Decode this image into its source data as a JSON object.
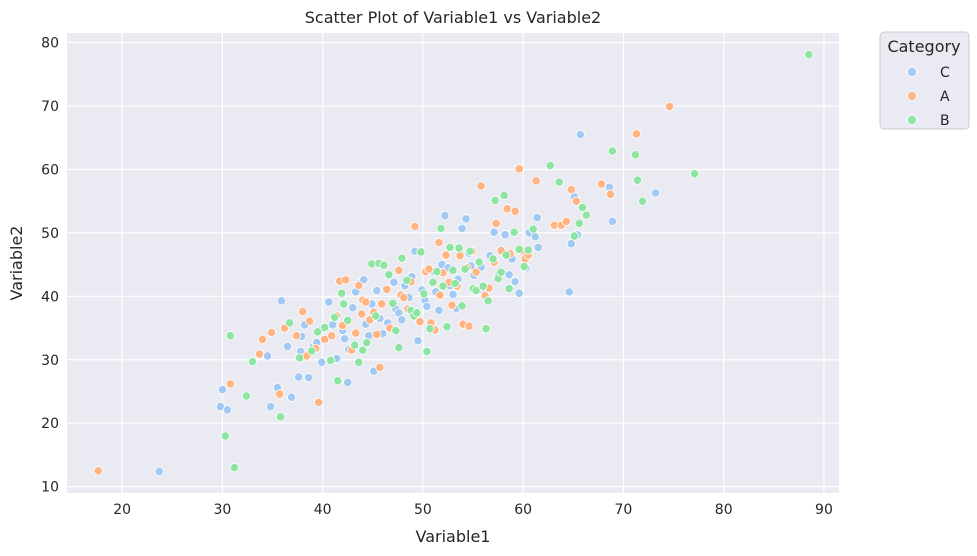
{
  "chart_data": {
    "type": "scatter",
    "title": "Scatter Plot of Variable1 vs Variable2",
    "xlabel": "Variable1",
    "ylabel": "Variable2",
    "xlim": [
      14.5,
      91.5
    ],
    "ylim": [
      9,
      81.5
    ],
    "xticks": [
      20,
      30,
      40,
      50,
      60,
      70,
      80,
      90
    ],
    "yticks": [
      10,
      20,
      30,
      40,
      50,
      60,
      70,
      80
    ],
    "grid": true,
    "legend": {
      "title": "Category",
      "placement": "outside-top-right"
    },
    "series": [
      {
        "name": "C",
        "color": "#a1c9f4",
        "points": [
          [
            23.7,
            12.4
          ],
          [
            30.0,
            25.3
          ],
          [
            29.8,
            22.6
          ],
          [
            30.5,
            22.1
          ],
          [
            34.5,
            30.6
          ],
          [
            34.8,
            22.6
          ],
          [
            35.5,
            25.6
          ],
          [
            35.9,
            39.3
          ],
          [
            36.5,
            32.1
          ],
          [
            36.9,
            24.1
          ],
          [
            37.6,
            27.3
          ],
          [
            37.8,
            31.3
          ],
          [
            37.9,
            33.7
          ],
          [
            38.2,
            35.5
          ],
          [
            38.6,
            27.2
          ],
          [
            39.0,
            31.9
          ],
          [
            39.4,
            32.7
          ],
          [
            39.9,
            29.6
          ],
          [
            40.0,
            35.0
          ],
          [
            40.6,
            39.1
          ],
          [
            41.0,
            35.5
          ],
          [
            41.4,
            30.2
          ],
          [
            42.0,
            34.6
          ],
          [
            42.2,
            33.3
          ],
          [
            42.5,
            26.4
          ],
          [
            42.6,
            31.6
          ],
          [
            43.0,
            38.2
          ],
          [
            43.3,
            40.7
          ],
          [
            43.7,
            42.0
          ],
          [
            44.1,
            42.6
          ],
          [
            44.3,
            35.6
          ],
          [
            44.6,
            33.8
          ],
          [
            44.9,
            38.8
          ],
          [
            45.1,
            28.2
          ],
          [
            45.4,
            40.9
          ],
          [
            45.7,
            36.5
          ],
          [
            46.0,
            34.1
          ],
          [
            46.5,
            35.8
          ],
          [
            47.1,
            42.2
          ],
          [
            47.3,
            38.0
          ],
          [
            47.6,
            37.4
          ],
          [
            47.9,
            36.3
          ],
          [
            48.2,
            41.7
          ],
          [
            48.6,
            39.8
          ],
          [
            48.9,
            43.1
          ],
          [
            49.2,
            47.1
          ],
          [
            49.5,
            33.0
          ],
          [
            49.9,
            41.0
          ],
          [
            50.2,
            39.4
          ],
          [
            50.4,
            38.4
          ],
          [
            50.8,
            35.6
          ],
          [
            51.1,
            43.9
          ],
          [
            51.3,
            40.7
          ],
          [
            51.6,
            37.8
          ],
          [
            51.9,
            45.0
          ],
          [
            52.2,
            52.7
          ],
          [
            52.5,
            44.5
          ],
          [
            52.7,
            41.7
          ],
          [
            53.0,
            40.3
          ],
          [
            53.3,
            38.1
          ],
          [
            53.5,
            42.7
          ],
          [
            53.9,
            50.7
          ],
          [
            54.3,
            52.2
          ],
          [
            54.6,
            46.8
          ],
          [
            54.8,
            44.8
          ],
          [
            55.1,
            43.3
          ],
          [
            55.5,
            40.9
          ],
          [
            55.8,
            44.6
          ],
          [
            56.1,
            41.3
          ],
          [
            56.7,
            46.4
          ],
          [
            57.1,
            50.1
          ],
          [
            57.6,
            43.5
          ],
          [
            58.0,
            47.0
          ],
          [
            58.2,
            49.7
          ],
          [
            58.6,
            43.4
          ],
          [
            58.9,
            45.9
          ],
          [
            59.2,
            42.3
          ],
          [
            59.6,
            40.5
          ],
          [
            60.3,
            44.5
          ],
          [
            60.6,
            50.0
          ],
          [
            61.2,
            49.4
          ],
          [
            61.4,
            52.4
          ],
          [
            61.5,
            47.7
          ],
          [
            64.6,
            40.7
          ],
          [
            64.8,
            48.3
          ],
          [
            65.1,
            55.7
          ],
          [
            65.4,
            49.7
          ],
          [
            65.7,
            65.5
          ],
          [
            68.6,
            57.2
          ],
          [
            68.9,
            51.8
          ],
          [
            73.2,
            56.3
          ]
        ]
      },
      {
        "name": "A",
        "color": "#ffb482",
        "points": [
          [
            17.6,
            12.5
          ],
          [
            30.8,
            26.2
          ],
          [
            33.7,
            30.9
          ],
          [
            34.0,
            33.2
          ],
          [
            34.9,
            34.3
          ],
          [
            35.7,
            24.6
          ],
          [
            36.2,
            35.0
          ],
          [
            37.4,
            33.8
          ],
          [
            38.0,
            37.6
          ],
          [
            38.4,
            30.6
          ],
          [
            38.7,
            36.1
          ],
          [
            39.3,
            31.8
          ],
          [
            39.6,
            23.3
          ],
          [
            40.2,
            33.2
          ],
          [
            40.9,
            33.8
          ],
          [
            41.4,
            36.9
          ],
          [
            41.7,
            42.4
          ],
          [
            42.0,
            35.4
          ],
          [
            42.3,
            42.6
          ],
          [
            42.9,
            31.5
          ],
          [
            43.3,
            34.2
          ],
          [
            43.6,
            41.7
          ],
          [
            43.9,
            37.2
          ],
          [
            44.0,
            39.4
          ],
          [
            44.3,
            39.1
          ],
          [
            44.7,
            36.3
          ],
          [
            45.1,
            37.5
          ],
          [
            45.4,
            34.0
          ],
          [
            45.7,
            28.8
          ],
          [
            45.9,
            38.8
          ],
          [
            46.4,
            41.1
          ],
          [
            46.7,
            35.0
          ],
          [
            47.3,
            34.6
          ],
          [
            47.6,
            44.1
          ],
          [
            47.8,
            40.2
          ],
          [
            48.1,
            39.8
          ],
          [
            48.5,
            38.0
          ],
          [
            48.8,
            42.3
          ],
          [
            49.2,
            51.0
          ],
          [
            49.7,
            36.0
          ],
          [
            50.3,
            43.9
          ],
          [
            50.6,
            44.3
          ],
          [
            50.8,
            35.8
          ],
          [
            51.2,
            34.7
          ],
          [
            51.6,
            48.5
          ],
          [
            51.7,
            40.2
          ],
          [
            52.0,
            43.7
          ],
          [
            52.3,
            46.5
          ],
          [
            52.6,
            42.2
          ],
          [
            52.9,
            38.6
          ],
          [
            53.4,
            41.6
          ],
          [
            53.7,
            46.4
          ],
          [
            54.0,
            35.6
          ],
          [
            54.4,
            44.5
          ],
          [
            54.6,
            35.3
          ],
          [
            54.9,
            47.1
          ],
          [
            55.3,
            43.8
          ],
          [
            55.8,
            57.4
          ],
          [
            56.2,
            40.1
          ],
          [
            56.6,
            41.3
          ],
          [
            57.1,
            45.4
          ],
          [
            57.3,
            51.5
          ],
          [
            57.8,
            47.2
          ],
          [
            58.4,
            53.8
          ],
          [
            58.7,
            46.7
          ],
          [
            59.2,
            53.4
          ],
          [
            59.6,
            60.1
          ],
          [
            59.9,
            47.2
          ],
          [
            60.2,
            45.9
          ],
          [
            60.5,
            46.5
          ],
          [
            61.3,
            58.2
          ],
          [
            63.1,
            51.2
          ],
          [
            63.8,
            51.2
          ],
          [
            64.3,
            51.8
          ],
          [
            64.8,
            56.8
          ],
          [
            65.3,
            55.0
          ],
          [
            67.8,
            57.7
          ],
          [
            68.7,
            56.1
          ],
          [
            71.3,
            65.6
          ],
          [
            74.6,
            69.9
          ]
        ]
      },
      {
        "name": "B",
        "color": "#8de5a1",
        "points": [
          [
            30.3,
            18.0
          ],
          [
            30.8,
            33.8
          ],
          [
            31.2,
            13.0
          ],
          [
            32.4,
            24.3
          ],
          [
            33.0,
            29.7
          ],
          [
            35.8,
            21.0
          ],
          [
            36.7,
            35.8
          ],
          [
            37.7,
            30.3
          ],
          [
            38.9,
            31.4
          ],
          [
            39.5,
            34.4
          ],
          [
            40.2,
            35.1
          ],
          [
            40.8,
            29.9
          ],
          [
            41.2,
            36.7
          ],
          [
            41.5,
            26.7
          ],
          [
            41.9,
            40.5
          ],
          [
            42.1,
            38.8
          ],
          [
            42.5,
            36.2
          ],
          [
            43.2,
            32.3
          ],
          [
            43.6,
            29.6
          ],
          [
            44.0,
            31.5
          ],
          [
            44.4,
            32.7
          ],
          [
            44.9,
            45.1
          ],
          [
            45.3,
            36.9
          ],
          [
            45.6,
            45.2
          ],
          [
            46.1,
            44.9
          ],
          [
            46.6,
            43.4
          ],
          [
            47.0,
            38.9
          ],
          [
            47.3,
            34.6
          ],
          [
            47.6,
            31.9
          ],
          [
            47.9,
            46.0
          ],
          [
            48.4,
            42.5
          ],
          [
            48.8,
            37.8
          ],
          [
            49.1,
            36.9
          ],
          [
            49.4,
            37.4
          ],
          [
            49.8,
            47.0
          ],
          [
            50.1,
            40.4
          ],
          [
            50.4,
            31.3
          ],
          [
            50.7,
            34.9
          ],
          [
            51.0,
            42.2
          ],
          [
            51.4,
            43.9
          ],
          [
            51.8,
            50.7
          ],
          [
            52.0,
            41.6
          ],
          [
            52.4,
            35.2
          ],
          [
            52.7,
            47.7
          ],
          [
            53.0,
            44.1
          ],
          [
            53.2,
            42.0
          ],
          [
            53.6,
            47.6
          ],
          [
            53.9,
            38.5
          ],
          [
            54.2,
            44.3
          ],
          [
            54.7,
            47.1
          ],
          [
            55.0,
            41.2
          ],
          [
            55.3,
            40.9
          ],
          [
            55.6,
            45.4
          ],
          [
            56.0,
            41.6
          ],
          [
            56.3,
            34.9
          ],
          [
            56.5,
            39.3
          ],
          [
            57.0,
            45.9
          ],
          [
            57.2,
            55.1
          ],
          [
            57.5,
            42.8
          ],
          [
            57.8,
            43.8
          ],
          [
            58.1,
            55.9
          ],
          [
            58.3,
            46.5
          ],
          [
            58.6,
            41.2
          ],
          [
            59.1,
            50.1
          ],
          [
            59.6,
            47.4
          ],
          [
            60.1,
            44.7
          ],
          [
            60.5,
            47.3
          ],
          [
            61.0,
            50.6
          ],
          [
            62.7,
            60.6
          ],
          [
            63.6,
            58.0
          ],
          [
            65.1,
            49.5
          ],
          [
            65.6,
            51.5
          ],
          [
            65.9,
            54.0
          ],
          [
            66.3,
            52.8
          ],
          [
            68.9,
            62.9
          ],
          [
            71.2,
            62.3
          ],
          [
            71.4,
            58.3
          ],
          [
            71.9,
            55.0
          ],
          [
            77.1,
            59.3
          ],
          [
            88.5,
            78.1
          ]
        ]
      }
    ]
  }
}
